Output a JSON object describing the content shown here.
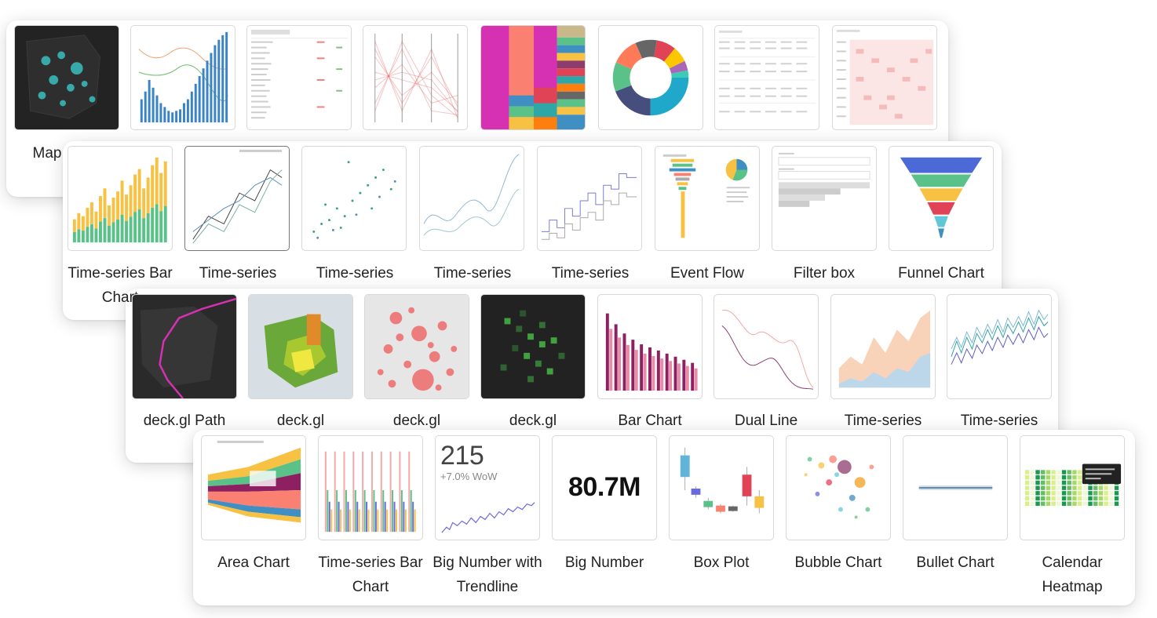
{
  "rows": [
    {
      "id": "row1",
      "cards": [
        {
          "key": "map",
          "caption": "Map"
        },
        {
          "key": "mixed-timeseries",
          "caption": ""
        },
        {
          "key": "table",
          "caption": ""
        },
        {
          "key": "parallel-coordinates",
          "caption": ""
        },
        {
          "key": "treemap",
          "caption": ""
        },
        {
          "key": "donut",
          "caption": ""
        },
        {
          "key": "pivot-table",
          "caption": ""
        },
        {
          "key": "heatmap-table",
          "caption": ""
        }
      ]
    },
    {
      "id": "row2",
      "cards": [
        {
          "key": "ts-bar",
          "caption": "Time-series Bar Chart"
        },
        {
          "key": "ts-line",
          "caption": "Time-series",
          "selected": true
        },
        {
          "key": "ts-scatter",
          "caption": "Time-series"
        },
        {
          "key": "ts-smooth",
          "caption": "Time-series"
        },
        {
          "key": "ts-step",
          "caption": "Time-series"
        },
        {
          "key": "event-flow",
          "caption": "Event Flow"
        },
        {
          "key": "filter-box",
          "caption": "Filter box"
        },
        {
          "key": "funnel",
          "caption": "Funnel Chart"
        }
      ]
    },
    {
      "id": "row3",
      "cards": [
        {
          "key": "deckgl-path",
          "caption": "deck.gl Path"
        },
        {
          "key": "deckgl-3d",
          "caption": "deck.gl"
        },
        {
          "key": "deckgl-scatter",
          "caption": "deck.gl"
        },
        {
          "key": "deckgl-grid",
          "caption": "deck.gl"
        },
        {
          "key": "bar-chart",
          "caption": "Bar Chart"
        },
        {
          "key": "dual-line",
          "caption": "Dual Line"
        },
        {
          "key": "ts-area",
          "caption": "Time-series"
        },
        {
          "key": "ts-noisy",
          "caption": "Time-series"
        }
      ]
    },
    {
      "id": "row4",
      "cards": [
        {
          "key": "area-chart",
          "caption": "Area Chart"
        },
        {
          "key": "ts-bar2",
          "caption": "Time-series Bar Chart"
        },
        {
          "key": "big-number-trend",
          "caption": "Big Number with Trendline",
          "number": "215",
          "sub": "+7.0% WoW"
        },
        {
          "key": "big-number",
          "caption": "Big Number",
          "number": "80.7M"
        },
        {
          "key": "box-plot",
          "caption": "Box Plot"
        },
        {
          "key": "bubble",
          "caption": "Bubble Chart"
        },
        {
          "key": "bullet",
          "caption": "Bullet Chart"
        },
        {
          "key": "calendar",
          "caption": "Calendar Heatmap"
        }
      ]
    }
  ],
  "colors": {
    "accent_blue": "#1f77b4",
    "teal": "#5ac189",
    "gold": "#f7c244",
    "red": "#e04355",
    "magenta": "#d531b2",
    "salmon": "#fa8072",
    "purple": "#8c3d6e"
  }
}
